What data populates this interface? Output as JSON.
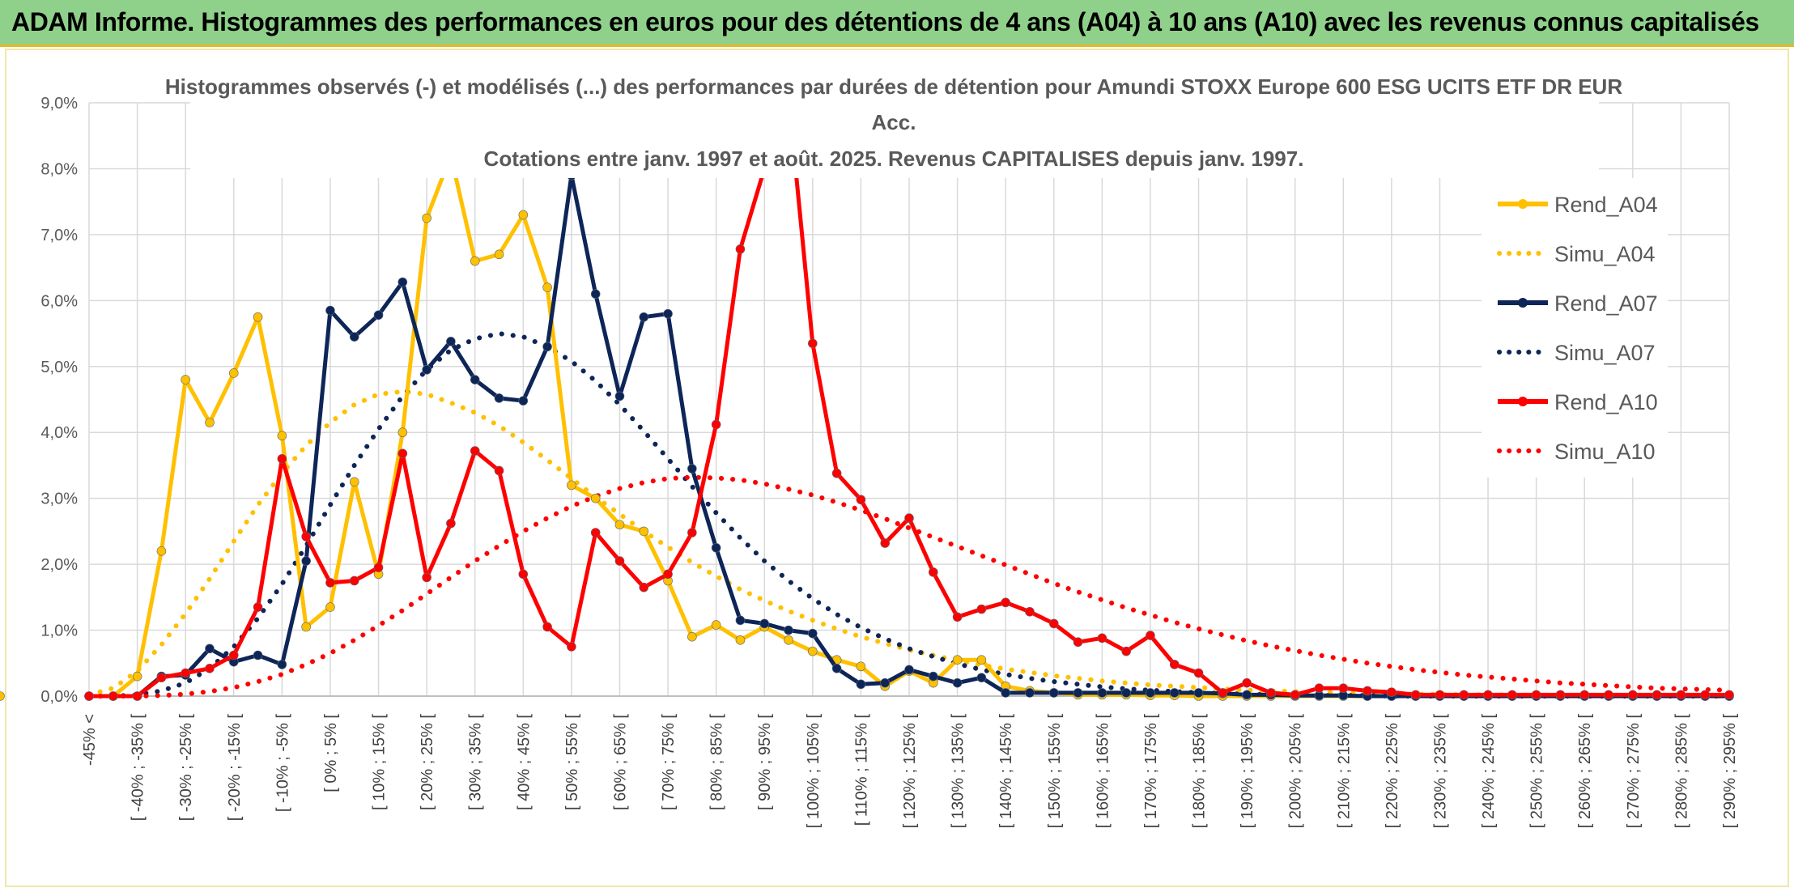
{
  "header": {
    "title": "ADAM Informe. Histogrammes des performances en euros pour des détentions de 4 ans (A04) à 10 ans (A10) avec les revenus connus capitalisés"
  },
  "chart_data": {
    "type": "line",
    "title_lines": [
      "Histogrammes observés (-) et modélisés (...) des performances par durées de détention pour Amundi STOXX Europe 600 ESG UCITS ETF DR EUR",
      "Acc.",
      "Cotations entre janv. 1997 et août. 2025. Revenus CAPITALISES depuis janv. 1997."
    ],
    "xlabel": "",
    "ylabel": "",
    "ylim": [
      0,
      9
    ],
    "y_ticks": [
      "0,0%",
      "1,0%",
      "2,0%",
      "3,0%",
      "4,0%",
      "5,0%",
      "6,0%",
      "7,0%",
      "8,0%",
      "9,0%"
    ],
    "grid": true,
    "legend_position": "right",
    "x_labels": [
      "-45% <",
      "[ -40% ; -35% [",
      "[ -30% ; -25% [",
      "[ -20% ; -15% [",
      "[ -10% ; -5% [",
      "[ 0% ; 5% [",
      "[ 10% ; 15% [",
      "[ 20% ; 25% [",
      "[ 30% ; 35% [",
      "[ 40% ; 45% [",
      "[ 50% ; 55% [",
      "[ 60% ; 65% [",
      "[ 70% ; 75% [",
      "[ 80% ; 85% [",
      "[ 90% ; 95% [",
      "[ 100% ; 105% [",
      "[ 110% ; 115% [",
      "[ 120% ; 125% [",
      "[ 130% ; 135% [",
      "[ 140% ; 145% [",
      "[ 150% ; 155% [",
      "[ 160% ; 165% [",
      "[ 170% ; 175% [",
      "[ 180% ; 185% [",
      "[ 190% ; 195% [",
      "[ 200% ; 205% [",
      "[ 210% ; 215% [",
      "[ 220% ; 225% [",
      "[ 230% ; 235% [",
      "[ 240% ; 245% [",
      "[ 250% ; 255% [",
      "[ 260% ; 265% [",
      "[ 270% ; 275% [",
      "[ 280% ; 285% [",
      "[ 290% ; 295% ["
    ],
    "x_bins_lower": [
      -45,
      -40,
      -35,
      -30,
      -25,
      -20,
      -15,
      -10,
      -5,
      0,
      5,
      10,
      15,
      20,
      25,
      30,
      35,
      40,
      45,
      50,
      55,
      60,
      65,
      70,
      75,
      80,
      85,
      90,
      95,
      100,
      105,
      110,
      115,
      120,
      125,
      130,
      135,
      140,
      145,
      150,
      155,
      160,
      165,
      170,
      175,
      180,
      185,
      190,
      195,
      200,
      205,
      210,
      215,
      220,
      225,
      230,
      235,
      240,
      245,
      250,
      255,
      260,
      265,
      270,
      275,
      280,
      285,
      290,
      295
    ],
    "series": [
      {
        "name": "Rend_A04",
        "color": "#ffc000",
        "style": "solid-markers",
        "values": [
          0,
          0,
          0.3,
          2.2,
          4.8,
          4.15,
          4.9,
          5.75,
          3.95,
          1.05,
          1.35,
          3.25,
          1.85,
          4.0,
          7.25,
          8.2,
          6.6,
          6.7,
          7.3,
          6.2,
          3.2,
          3.0,
          2.6,
          2.5,
          1.75,
          0.9,
          1.08,
          0.85,
          1.05,
          0.85,
          0.68,
          0.55,
          0.45,
          0.15,
          0.38,
          0.2,
          0.55,
          0.55,
          0.15,
          0.08,
          0.05,
          0.02,
          0.02,
          0.02,
          0.01,
          0.01,
          0,
          0,
          0,
          0,
          0,
          0,
          0,
          0,
          0,
          0,
          0,
          0,
          0,
          0,
          0,
          0,
          0,
          0,
          0,
          0,
          0,
          0,
          0,
          0
        ]
      },
      {
        "name": "Simu_A04",
        "color": "#ffc000",
        "style": "dotted",
        "values": [
          0.02,
          0.12,
          0.38,
          0.78,
          1.25,
          1.78,
          2.35,
          2.9,
          3.38,
          3.8,
          4.15,
          4.42,
          4.58,
          4.62,
          4.58,
          4.45,
          4.3,
          4.1,
          3.85,
          3.58,
          3.3,
          3.02,
          2.76,
          2.5,
          2.26,
          2.03,
          1.82,
          1.62,
          1.45,
          1.29,
          1.15,
          1.02,
          0.9,
          0.8,
          0.7,
          0.62,
          0.54,
          0.47,
          0.41,
          0.36,
          0.31,
          0.27,
          0.23,
          0.2,
          0.17,
          0.15,
          0.13,
          0.11,
          0.09,
          0.08,
          0.07,
          0.06,
          0.05,
          0.04,
          0.04,
          0.03,
          0.03,
          0.02,
          0.02,
          0.02,
          0.01,
          0.01,
          0.01,
          0.01,
          0.01,
          0.01,
          0.01,
          0,
          0
        ]
      },
      {
        "name": "Rend_A07",
        "color": "#0e2558",
        "style": "solid-markers",
        "values": [
          0,
          0,
          0,
          0.3,
          0.32,
          0.72,
          0.52,
          0.62,
          0.48,
          2.05,
          5.85,
          5.45,
          5.78,
          6.28,
          4.95,
          5.38,
          4.8,
          4.52,
          4.48,
          5.3,
          7.9,
          6.1,
          4.55,
          5.75,
          5.8,
          3.45,
          2.25,
          1.15,
          1.1,
          1.0,
          0.95,
          0.42,
          0.18,
          0.2,
          0.4,
          0.3,
          0.2,
          0.28,
          0.05,
          0.05,
          0.05,
          0.05,
          0.05,
          0.05,
          0.05,
          0.05,
          0.05,
          0.04,
          0.02,
          0.02,
          0.01,
          0.01,
          0.01,
          0,
          0,
          0,
          0,
          0,
          0,
          0,
          0,
          0,
          0,
          0,
          0,
          0,
          0,
          0,
          0
        ]
      },
      {
        "name": "Simu_A07",
        "color": "#0e2558",
        "style": "dotted",
        "values": [
          0,
          0,
          0.02,
          0.08,
          0.2,
          0.42,
          0.75,
          1.18,
          1.7,
          2.28,
          2.9,
          3.5,
          4.05,
          4.55,
          4.95,
          5.25,
          5.42,
          5.5,
          5.45,
          5.3,
          5.08,
          4.78,
          4.42,
          4.02,
          3.6,
          3.18,
          2.78,
          2.4,
          2.05,
          1.75,
          1.48,
          1.24,
          1.04,
          0.87,
          0.72,
          0.6,
          0.49,
          0.4,
          0.33,
          0.27,
          0.22,
          0.18,
          0.14,
          0.11,
          0.09,
          0.07,
          0.05,
          0.04,
          0.03,
          0.02,
          0.02,
          0.01,
          0.01,
          0.01,
          0,
          0,
          0,
          0,
          0,
          0,
          0,
          0,
          0,
          0,
          0,
          0,
          0,
          0,
          0
        ]
      },
      {
        "name": "Rend_A10",
        "color": "#ff0000",
        "style": "solid-markers",
        "values": [
          0,
          0,
          0,
          0.28,
          0.35,
          0.42,
          0.62,
          1.35,
          3.6,
          2.42,
          1.72,
          1.75,
          1.95,
          3.68,
          1.8,
          2.62,
          3.72,
          3.42,
          1.85,
          1.05,
          0.75,
          2.48,
          2.05,
          1.65,
          1.85,
          2.48,
          4.12,
          6.78,
          8.0,
          9.1,
          5.35,
          3.38,
          2.98,
          2.32,
          2.7,
          1.88,
          1.2,
          1.32,
          1.42,
          1.28,
          1.1,
          0.82,
          0.88,
          0.68,
          0.92,
          0.48,
          0.35,
          0.05,
          0.2,
          0.05,
          0.02,
          0.12,
          0.12,
          0.08,
          0.06,
          0.02,
          0.02,
          0.02,
          0.02,
          0.02,
          0.02,
          0.02,
          0.02,
          0.02,
          0.02,
          0.02,
          0.02,
          0.02,
          0.02
        ]
      },
      {
        "name": "Simu_A10",
        "color": "#ff0000",
        "style": "dotted",
        "values": [
          0,
          0,
          0,
          0.01,
          0.03,
          0.07,
          0.13,
          0.22,
          0.33,
          0.48,
          0.65,
          0.85,
          1.07,
          1.3,
          1.55,
          1.8,
          2.05,
          2.28,
          2.5,
          2.7,
          2.88,
          3.03,
          3.15,
          3.24,
          3.3,
          3.32,
          3.31,
          3.28,
          3.22,
          3.14,
          3.05,
          2.94,
          2.82,
          2.69,
          2.55,
          2.41,
          2.27,
          2.13,
          1.99,
          1.85,
          1.71,
          1.58,
          1.46,
          1.34,
          1.23,
          1.12,
          1.02,
          0.93,
          0.84,
          0.76,
          0.69,
          0.62,
          0.56,
          0.5,
          0.45,
          0.4,
          0.36,
          0.32,
          0.29,
          0.26,
          0.23,
          0.2,
          0.18,
          0.16,
          0.14,
          0.12,
          0.11,
          0.1,
          0.09
        ]
      }
    ]
  }
}
